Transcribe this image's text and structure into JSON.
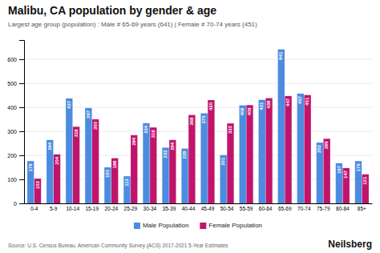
{
  "chart_data": {
    "type": "bar",
    "title": "Malibu, CA population by gender & age",
    "subtitle": "Largest age group (population) : Male # 65-69 years (641) | Female # 70-74 years (451)",
    "annotations": [
      "Source: U.S. Census Bureau, American Community Survey (ACS) 2017-2021 5-Year Estimates",
      "Neilsberg"
    ],
    "categories": [
      "0-4",
      "5-9",
      "10-14",
      "15-19",
      "20-24",
      "25-29",
      "30-34",
      "35-39",
      "40-44",
      "45-49",
      "50-54",
      "55-59",
      "60-64",
      "65-69",
      "70-74",
      "75-79",
      "80-84",
      "85+"
    ],
    "series": [
      {
        "name": "Male Population",
        "color": "#4C8BE0",
        "values": [
          176,
          264,
          437,
          397,
          150,
          113,
          334,
          232,
          228,
          375,
          201,
          408,
          431,
          641,
          457,
          253,
          167,
          176
        ]
      },
      {
        "name": "Female Population",
        "color": "#C0146C",
        "values": [
          103,
          204,
          319,
          350,
          188,
          284,
          316,
          264,
          368,
          430,
          333,
          409,
          438,
          447,
          451,
          269,
          147,
          121
        ]
      }
    ],
    "ylim": [
      0,
      680
    ],
    "yticks": [
      0,
      100,
      200,
      300,
      400,
      500,
      600
    ],
    "grid": true,
    "legend": "bottom",
    "data_labels": true
  }
}
